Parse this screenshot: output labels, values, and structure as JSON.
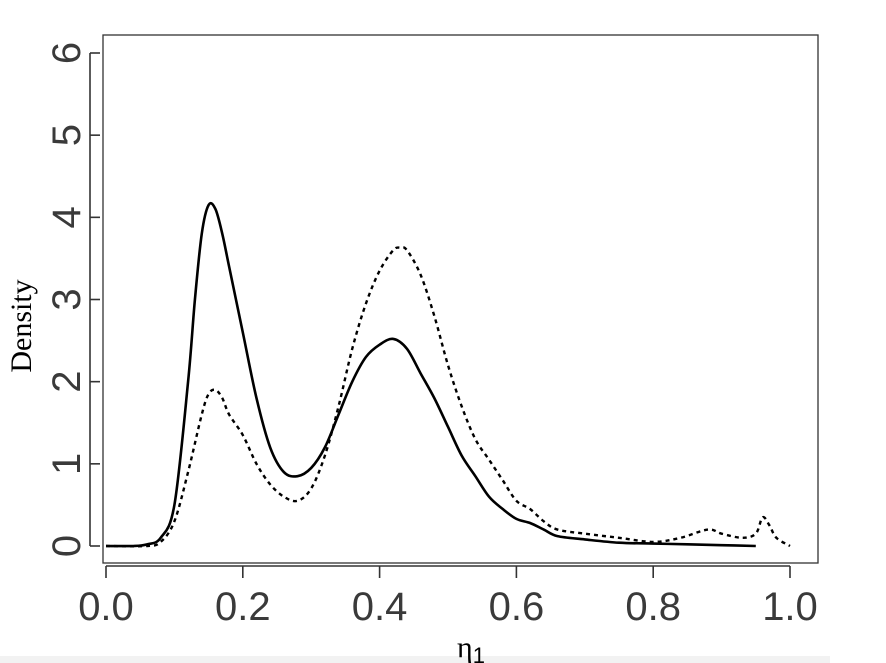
{
  "chart_data": {
    "type": "line",
    "title": "",
    "xlabel": "η",
    "xlabel_sub": "1",
    "ylabel": "Density",
    "xlim": [
      0.0,
      1.0
    ],
    "ylim": [
      0,
      6
    ],
    "x_ticks": [
      "0.0",
      "0.2",
      "0.4",
      "0.6",
      "0.8",
      "1.0"
    ],
    "y_ticks": [
      "0",
      "1",
      "2",
      "3",
      "4",
      "5",
      "6"
    ],
    "grid": false,
    "legend": "none",
    "series": [
      {
        "style": "solid",
        "color": "#000000",
        "x": [
          0.0,
          0.04,
          0.06,
          0.08,
          0.1,
          0.12,
          0.13,
          0.14,
          0.15,
          0.16,
          0.17,
          0.18,
          0.2,
          0.22,
          0.24,
          0.26,
          0.28,
          0.3,
          0.32,
          0.34,
          0.36,
          0.38,
          0.4,
          0.42,
          0.44,
          0.46,
          0.48,
          0.5,
          0.52,
          0.54,
          0.56,
          0.58,
          0.6,
          0.62,
          0.64,
          0.66,
          0.7,
          0.75,
          0.8,
          0.85,
          0.9,
          0.95
        ],
        "y": [
          0.0,
          0.0,
          0.02,
          0.1,
          0.5,
          2.0,
          3.0,
          3.8,
          4.15,
          4.1,
          3.8,
          3.4,
          2.6,
          1.8,
          1.2,
          0.9,
          0.85,
          0.95,
          1.2,
          1.6,
          2.0,
          2.3,
          2.45,
          2.52,
          2.4,
          2.1,
          1.8,
          1.45,
          1.1,
          0.85,
          0.6,
          0.45,
          0.33,
          0.28,
          0.2,
          0.12,
          0.08,
          0.04,
          0.03,
          0.02,
          0.01,
          0.0
        ]
      },
      {
        "style": "dotted",
        "color": "#000000",
        "x": [
          0.0,
          0.06,
          0.08,
          0.1,
          0.12,
          0.14,
          0.15,
          0.16,
          0.17,
          0.18,
          0.2,
          0.22,
          0.24,
          0.26,
          0.28,
          0.3,
          0.32,
          0.34,
          0.36,
          0.38,
          0.4,
          0.42,
          0.43,
          0.44,
          0.46,
          0.48,
          0.5,
          0.52,
          0.54,
          0.56,
          0.58,
          0.6,
          0.62,
          0.64,
          0.66,
          0.7,
          0.75,
          0.8,
          0.84,
          0.88,
          0.9,
          0.93,
          0.95,
          0.96,
          0.97,
          0.98,
          1.0
        ],
        "y": [
          0.0,
          0.0,
          0.05,
          0.3,
          0.9,
          1.6,
          1.85,
          1.9,
          1.8,
          1.6,
          1.35,
          1.0,
          0.75,
          0.6,
          0.55,
          0.7,
          1.1,
          1.7,
          2.4,
          2.95,
          3.35,
          3.6,
          3.63,
          3.6,
          3.3,
          2.8,
          2.2,
          1.7,
          1.3,
          1.05,
          0.8,
          0.55,
          0.45,
          0.3,
          0.2,
          0.15,
          0.1,
          0.05,
          0.1,
          0.2,
          0.15,
          0.1,
          0.15,
          0.35,
          0.25,
          0.1,
          0.0
        ]
      }
    ]
  }
}
